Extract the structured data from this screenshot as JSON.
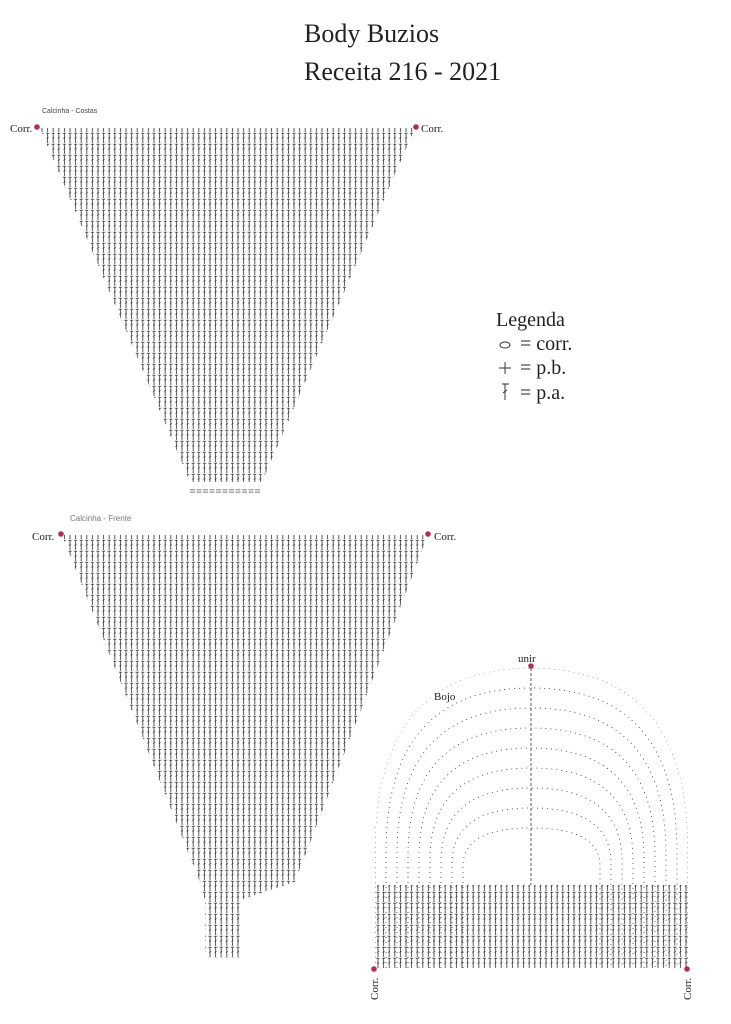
{
  "header": {
    "title": "Body Buzios",
    "subtitle": "Receita  216 - 2021"
  },
  "back_panel": {
    "label": "Calcinha - Costas",
    "left": "Corr.",
    "right": "Corr."
  },
  "front_panel": {
    "label": "Calcinha - Frente",
    "left": "Corr.",
    "right": "Corr."
  },
  "cup": {
    "label": "Bojo",
    "top": "unir",
    "left": "Corr.",
    "right": "Corr."
  },
  "legend": {
    "title": "Legenda",
    "items": [
      "= corr.",
      "= p.b.",
      "= p.a."
    ]
  }
}
